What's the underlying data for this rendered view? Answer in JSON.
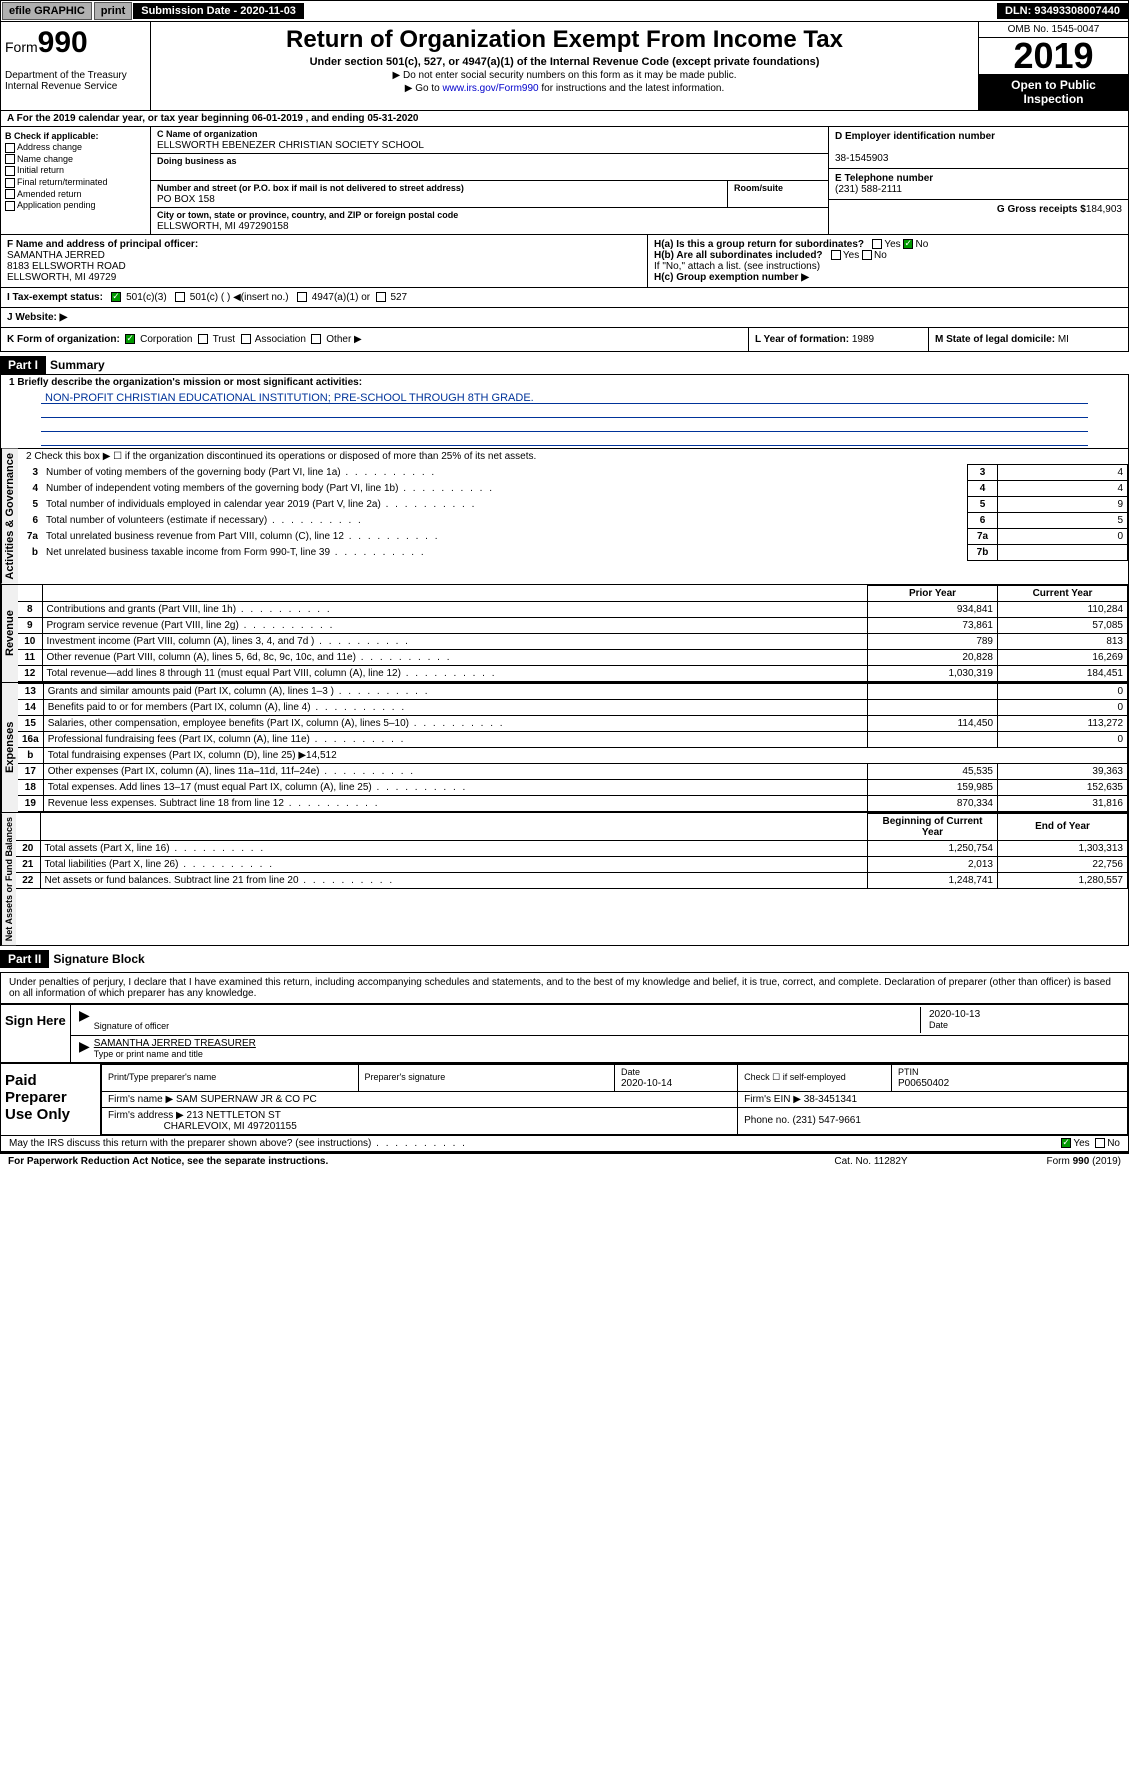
{
  "topbar": {
    "efile": "efile GRAPHIC",
    "print": "print",
    "submission": "Submission Date - 2020-11-03",
    "dln": "DLN: 93493308007440"
  },
  "header": {
    "form": "Form",
    "form_num": "990",
    "dept": "Department of the Treasury\nInternal Revenue Service",
    "title": "Return of Organization Exempt From Income Tax",
    "subtitle": "Under section 501(c), 527, or 4947(a)(1) of the Internal Revenue Code (except private foundations)",
    "note1": "▶ Do not enter social security numbers on this form as it may be made public.",
    "note2_pre": "▶ Go to ",
    "note2_link": "www.irs.gov/Form990",
    "note2_post": " for instructions and the latest information.",
    "omb": "OMB No. 1545-0047",
    "year": "2019",
    "open_public": "Open to Public Inspection"
  },
  "rowA": {
    "text": "A For the 2019 calendar year, or tax year beginning 06-01-2019    , and ending 05-31-2020"
  },
  "sectionB": {
    "label": "B Check if applicable:",
    "opts": [
      "Address change",
      "Name change",
      "Initial return",
      "Final return/terminated",
      "Amended return",
      "Application pending"
    ]
  },
  "sectionC": {
    "name_lbl": "C Name of organization",
    "name": "ELLSWORTH EBENEZER CHRISTIAN SOCIETY SCHOOL",
    "dba_lbl": "Doing business as",
    "dba": "",
    "street_lbl": "Number and street (or P.O. box if mail is not delivered to street address)",
    "street": "PO BOX 158",
    "room_lbl": "Room/suite",
    "room": "",
    "city_lbl": "City or town, state or province, country, and ZIP or foreign postal code",
    "city": "ELLSWORTH, MI  497290158"
  },
  "sectionDEFG": {
    "d_lbl": "D Employer identification number",
    "d": "38-1545903",
    "e_lbl": "E Telephone number",
    "e": "(231) 588-2111",
    "g_lbl": "G Gross receipts $",
    "g": "184,903"
  },
  "officer": {
    "lbl": "F Name and address of principal officer:",
    "name": "SAMANTHA JERRED",
    "addr1": "8183 ELLSWORTH ROAD",
    "addr2": "ELLSWORTH, MI  49729"
  },
  "sectionH": {
    "ha": "H(a)  Is this a group return for subordinates?",
    "ha_yes": "Yes",
    "ha_no": "No",
    "hb": "H(b)  Are all subordinates included?",
    "hb_yes": "Yes",
    "hb_no": "No",
    "hb_note": "If \"No,\" attach a list. (see instructions)",
    "hc": "H(c)  Group exemption number ▶"
  },
  "taxExempt": {
    "lbl": "I   Tax-exempt status:",
    "opt1": "501(c)(3)",
    "opt2": "501(c) (   ) ◀(insert no.)",
    "opt3": "4947(a)(1) or",
    "opt4": "527"
  },
  "website": {
    "lbl": "J   Website: ▶",
    "val": ""
  },
  "orgForm": {
    "k_lbl": "K Form of organization:",
    "opts": [
      "Corporation",
      "Trust",
      "Association",
      "Other ▶"
    ],
    "l_lbl": "L Year of formation:",
    "l": "1989",
    "m_lbl": "M State of legal domicile:",
    "m": "MI"
  },
  "part1": {
    "title": "Part I",
    "subtitle": "Summary",
    "line1_lbl": "1  Briefly describe the organization's mission or most significant activities:",
    "line1": "NON-PROFIT CHRISTIAN EDUCATIONAL INSTITUTION; PRE-SCHOOL THROUGH 8TH GRADE.",
    "line2": "2   Check this box ▶ ☐  if the organization discontinued its operations or disposed of more than 25% of its net assets.",
    "gov_rows": [
      {
        "no": "3",
        "desc": "Number of voting members of the governing body (Part VI, line 1a)",
        "box": "3",
        "val": "4"
      },
      {
        "no": "4",
        "desc": "Number of independent voting members of the governing body (Part VI, line 1b)",
        "box": "4",
        "val": "4"
      },
      {
        "no": "5",
        "desc": "Total number of individuals employed in calendar year 2019 (Part V, line 2a)",
        "box": "5",
        "val": "9"
      },
      {
        "no": "6",
        "desc": "Total number of volunteers (estimate if necessary)",
        "box": "6",
        "val": "5"
      },
      {
        "no": "7a",
        "desc": "Total unrelated business revenue from Part VIII, column (C), line 12",
        "box": "7a",
        "val": "0"
      },
      {
        "no": "b",
        "desc": "Net unrelated business taxable income from Form 990-T, line 39",
        "box": "7b",
        "val": ""
      }
    ],
    "col_prior": "Prior Year",
    "col_current": "Current Year",
    "revenue_rows": [
      {
        "no": "8",
        "desc": "Contributions and grants (Part VIII, line 1h)",
        "prior": "934,841",
        "current": "110,284"
      },
      {
        "no": "9",
        "desc": "Program service revenue (Part VIII, line 2g)",
        "prior": "73,861",
        "current": "57,085"
      },
      {
        "no": "10",
        "desc": "Investment income (Part VIII, column (A), lines 3, 4, and 7d )",
        "prior": "789",
        "current": "813"
      },
      {
        "no": "11",
        "desc": "Other revenue (Part VIII, column (A), lines 5, 6d, 8c, 9c, 10c, and 11e)",
        "prior": "20,828",
        "current": "16,269"
      },
      {
        "no": "12",
        "desc": "Total revenue—add lines 8 through 11 (must equal Part VIII, column (A), line 12)",
        "prior": "1,030,319",
        "current": "184,451"
      }
    ],
    "expense_rows": [
      {
        "no": "13",
        "desc": "Grants and similar amounts paid (Part IX, column (A), lines 1–3 )",
        "prior": "",
        "current": "0"
      },
      {
        "no": "14",
        "desc": "Benefits paid to or for members (Part IX, column (A), line 4)",
        "prior": "",
        "current": "0"
      },
      {
        "no": "15",
        "desc": "Salaries, other compensation, employee benefits (Part IX, column (A), lines 5–10)",
        "prior": "114,450",
        "current": "113,272"
      },
      {
        "no": "16a",
        "desc": "Professional fundraising fees (Part IX, column (A), line 11e)",
        "prior": "",
        "current": "0"
      },
      {
        "no": "b",
        "desc": "Total fundraising expenses (Part IX, column (D), line 25) ▶14,512",
        "prior": "—",
        "current": "—"
      },
      {
        "no": "17",
        "desc": "Other expenses (Part IX, column (A), lines 11a–11d, 11f–24e)",
        "prior": "45,535",
        "current": "39,363"
      },
      {
        "no": "18",
        "desc": "Total expenses. Add lines 13–17 (must equal Part IX, column (A), line 25)",
        "prior": "159,985",
        "current": "152,635"
      },
      {
        "no": "19",
        "desc": "Revenue less expenses. Subtract line 18 from line 12",
        "prior": "870,334",
        "current": "31,816"
      }
    ],
    "col_begin": "Beginning of Current Year",
    "col_end": "End of Year",
    "netassets_rows": [
      {
        "no": "20",
        "desc": "Total assets (Part X, line 16)",
        "prior": "1,250,754",
        "current": "1,303,313"
      },
      {
        "no": "21",
        "desc": "Total liabilities (Part X, line 26)",
        "prior": "2,013",
        "current": "22,756"
      },
      {
        "no": "22",
        "desc": "Net assets or fund balances. Subtract line 21 from line 20",
        "prior": "1,248,741",
        "current": "1,280,557"
      }
    ],
    "vert_gov": "Activities & Governance",
    "vert_rev": "Revenue",
    "vert_exp": "Expenses",
    "vert_net": "Net Assets or Fund Balances"
  },
  "part2": {
    "title": "Part II",
    "subtitle": "Signature Block",
    "perjury": "Under penalties of perjury, I declare that I have examined this return, including accompanying schedules and statements, and to the best of my knowledge and belief, it is true, correct, and complete. Declaration of preparer (other than officer) is based on all information of which preparer has any knowledge.",
    "sign_here": "Sign Here",
    "sig_of_officer": "Signature of officer",
    "sig_date": "2020-10-13",
    "sig_date_lbl": "Date",
    "officer_name": "SAMANTHA JERRED TREASURER",
    "type_name_lbl": "Type or print name and title",
    "paid_prep": "Paid Preparer Use Only",
    "prep_name_lbl": "Print/Type preparer's name",
    "prep_name": "",
    "prep_sig_lbl": "Preparer's signature",
    "prep_sig": "",
    "prep_date_lbl": "Date",
    "prep_date": "2020-10-14",
    "check_self": "Check ☐ if self-employed",
    "ptin_lbl": "PTIN",
    "ptin": "P00650402",
    "firm_name_lbl": "Firm's name   ▶",
    "firm_name": "SAM SUPERNAW JR & CO PC",
    "firm_ein_lbl": "Firm's EIN ▶",
    "firm_ein": "38-3451341",
    "firm_addr_lbl": "Firm's address ▶",
    "firm_addr": "213 NETTLETON ST",
    "firm_city": "CHARLEVOIX, MI  497201155",
    "phone_lbl": "Phone no.",
    "phone": "(231) 547-9661"
  },
  "discuss": {
    "text": "May the IRS discuss this return with the preparer shown above? (see instructions)",
    "yes": "Yes",
    "no": "No"
  },
  "footer": {
    "left": "For Paperwork Reduction Act Notice, see the separate instructions.",
    "mid": "Cat. No. 11282Y",
    "right": "Form 990 (2019)"
  }
}
